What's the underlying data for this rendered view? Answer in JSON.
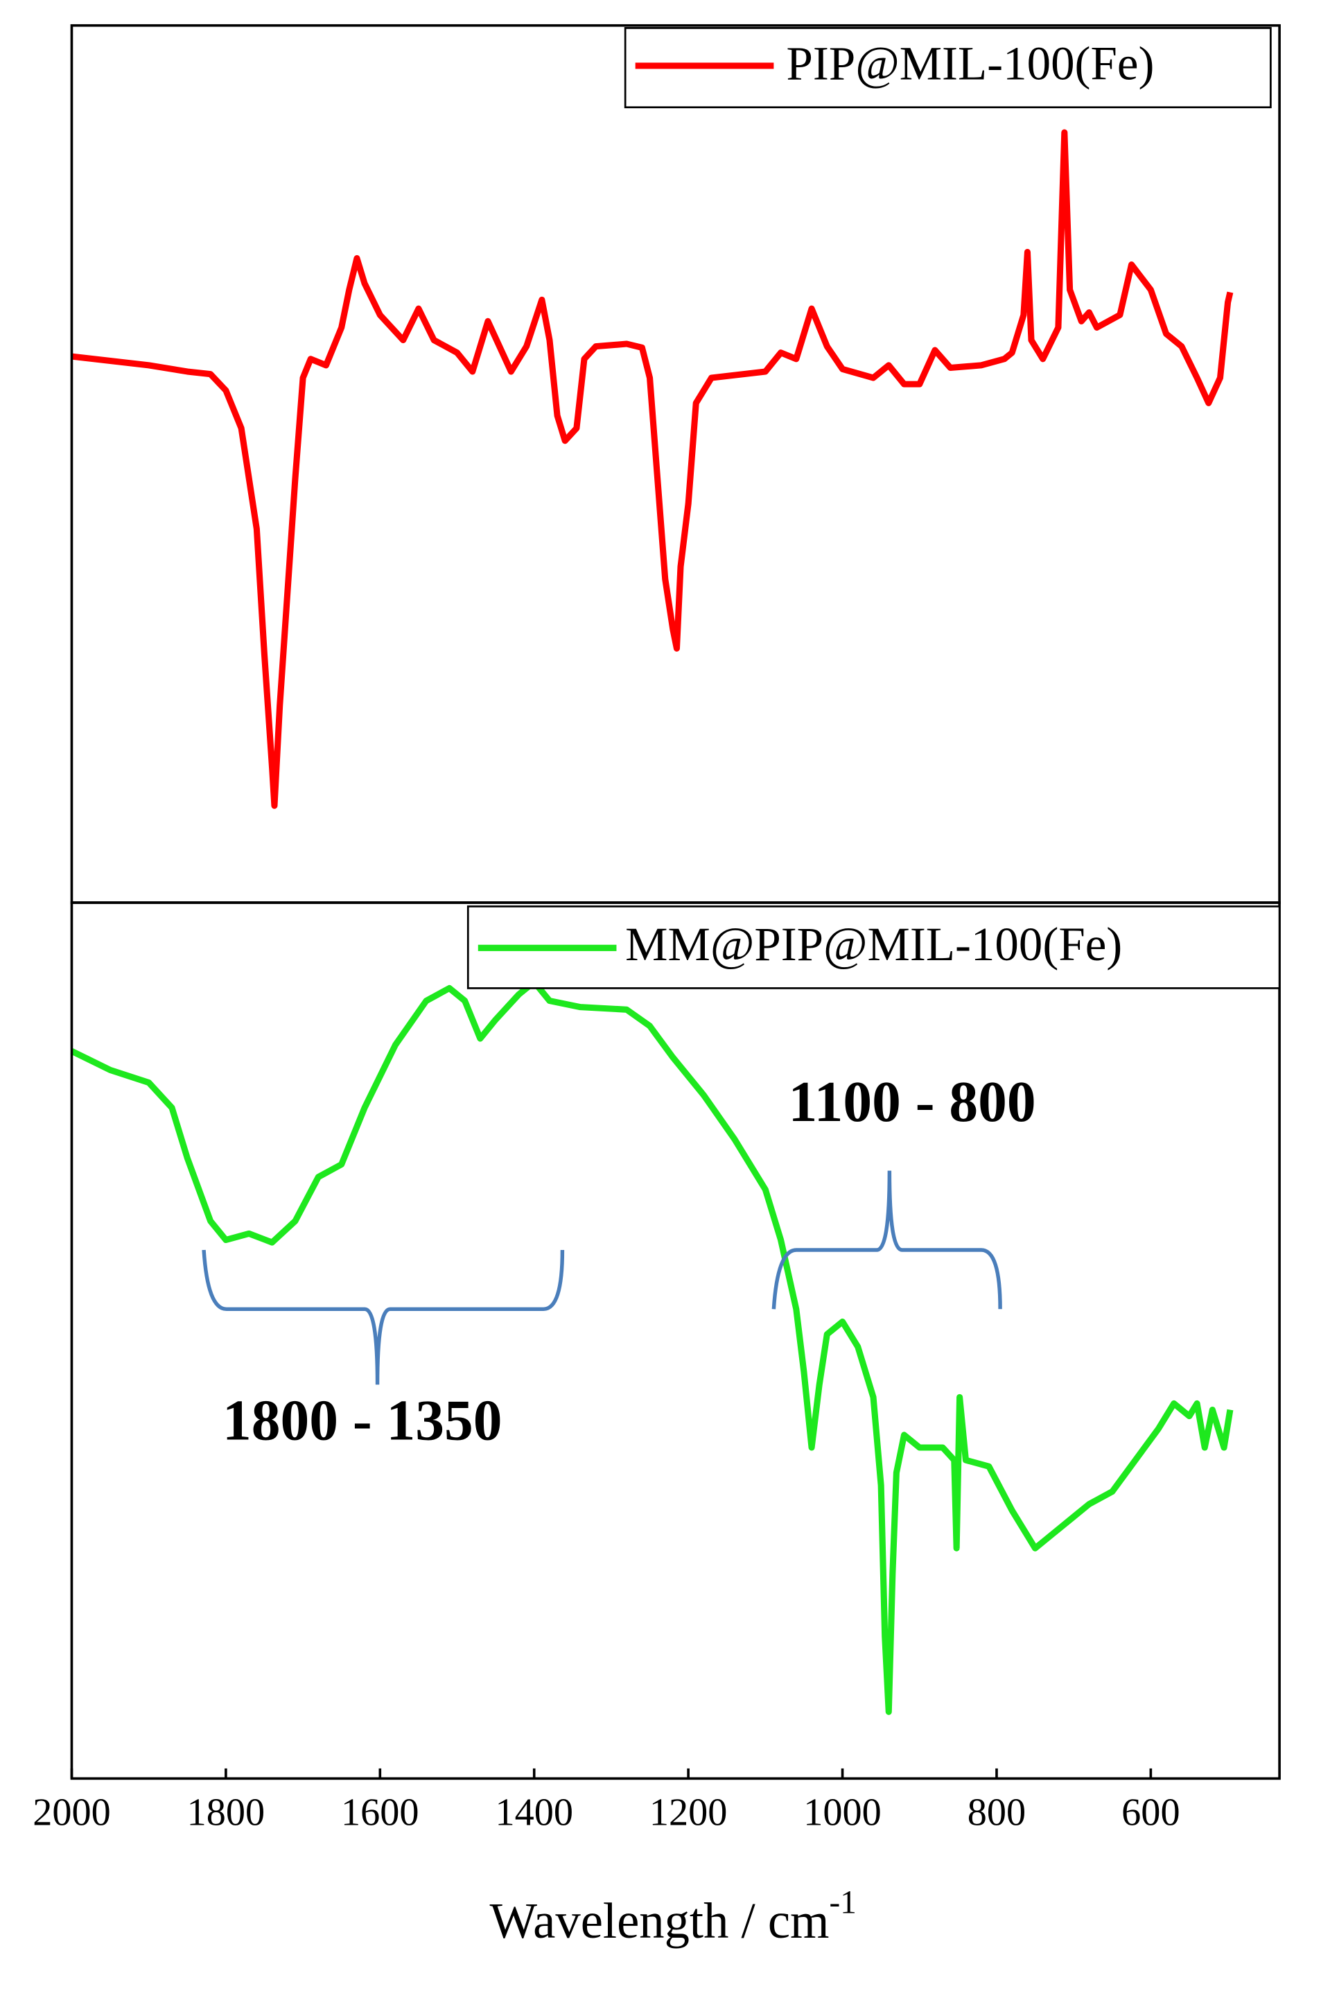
{
  "chart_data": [
    {
      "type": "line",
      "xlim": [
        2000,
        433
      ],
      "ylim": [
        0,
        697
      ],
      "series": [
        {
          "name": "PIP@MIL-100(Fe)",
          "color": "#ff0000",
          "x": [
            2000,
            1900,
            1850,
            1820,
            1800,
            1780,
            1760,
            1750,
            1740,
            1737,
            1730,
            1720,
            1710,
            1700,
            1690,
            1670,
            1650,
            1640,
            1630,
            1620,
            1600,
            1570,
            1550,
            1530,
            1500,
            1480,
            1460,
            1430,
            1410,
            1390,
            1380,
            1370,
            1360,
            1345,
            1335,
            1320,
            1280,
            1260,
            1250,
            1240,
            1230,
            1220,
            1215,
            1210,
            1200,
            1190,
            1170,
            1100,
            1080,
            1060,
            1040,
            1020,
            1000,
            960,
            940,
            920,
            900,
            880,
            860,
            820,
            790,
            780,
            765,
            760,
            755,
            740,
            720,
            712,
            705,
            690,
            680,
            670,
            640,
            625,
            600,
            580,
            560,
            540,
            525,
            510,
            500,
            497
          ],
          "values": [
            434,
            427,
            422,
            420,
            407,
            377,
            297,
            197,
            107,
            77,
            157,
            247,
            337,
            417,
            432,
            427,
            457,
            487,
            512,
            492,
            467,
            447,
            472,
            447,
            437,
            422,
            462,
            422,
            442,
            479,
            447,
            387,
            367,
            377,
            432,
            442,
            444,
            441,
            417,
            337,
            257,
            217,
            202,
            267,
            317,
            397,
            417,
            422,
            437,
            432,
            472,
            442,
            424,
            417,
            427,
            412,
            412,
            439,
            425,
            427,
            432,
            437,
            467,
            517,
            447,
            432,
            457,
            612,
            487,
            462,
            469,
            457,
            467,
            507,
            487,
            452,
            442,
            417,
            397,
            417,
            477,
            485
          ]
        }
      ]
    },
    {
      "type": "line",
      "xlim": [
        2000,
        433
      ],
      "ylim": [
        0,
        696
      ],
      "xticks": [
        2000,
        1800,
        1600,
        1400,
        1200,
        1000,
        800,
        600
      ],
      "x_label": "Wavelength / cm",
      "x_label_sup": "-1",
      "annotations": [
        "1800 - 1350",
        "1100 - 800"
      ],
      "series": [
        {
          "name": "MM@PIP@MIL-100(Fe)",
          "color": "#1ee81e",
          "x": [
            2000,
            1950,
            1900,
            1870,
            1850,
            1820,
            1800,
            1770,
            1740,
            1710,
            1680,
            1650,
            1620,
            1580,
            1540,
            1510,
            1490,
            1470,
            1450,
            1420,
            1400,
            1380,
            1340,
            1280,
            1250,
            1220,
            1180,
            1140,
            1100,
            1080,
            1060,
            1050,
            1040,
            1030,
            1020,
            1000,
            980,
            960,
            950,
            945,
            940,
            935,
            930,
            920,
            900,
            870,
            855,
            852,
            848,
            840,
            810,
            780,
            750,
            720,
            700,
            680,
            650,
            620,
            590,
            570,
            550,
            540,
            530,
            520,
            505,
            497
          ],
          "values": [
            578,
            563,
            553,
            533,
            493,
            443,
            428,
            433,
            426,
            443,
            478,
            488,
            533,
            583,
            618,
            628,
            618,
            588,
            603,
            623,
            633,
            618,
            613,
            611,
            598,
            573,
            543,
            508,
            468,
            428,
            373,
            323,
            263,
            313,
            353,
            363,
            343,
            303,
            233,
            113,
            53,
            163,
            243,
            273,
            263,
            263,
            253,
            183,
            303,
            253,
            248,
            213,
            183,
            198,
            208,
            218,
            228,
            253,
            278,
            298,
            288,
            298,
            263,
            293,
            263,
            293
          ]
        }
      ]
    }
  ]
}
